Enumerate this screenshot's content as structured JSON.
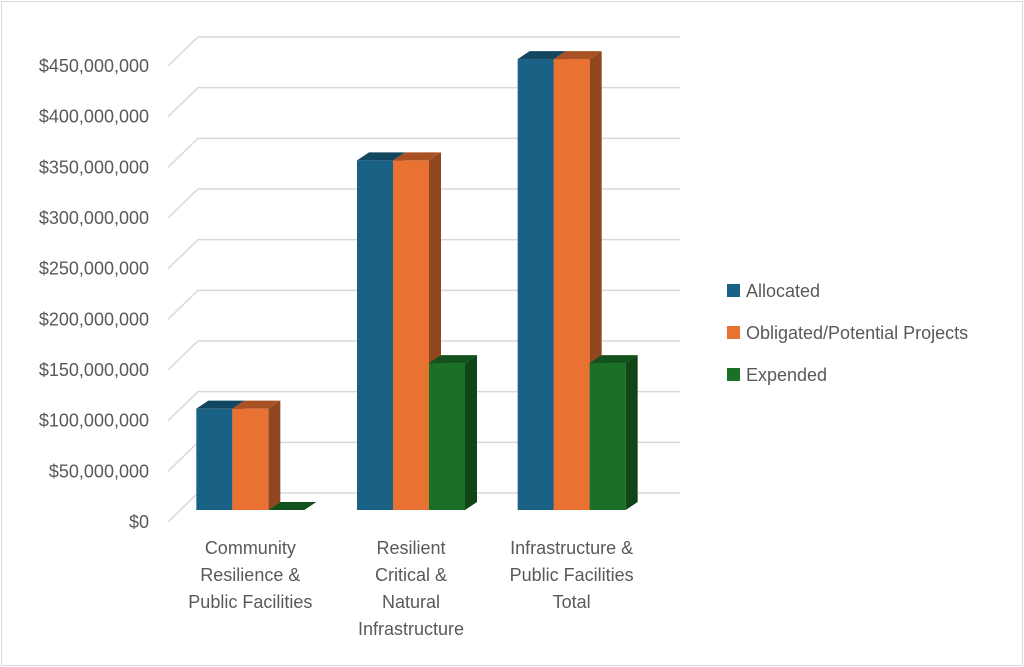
{
  "chart_data": {
    "type": "bar",
    "title": "",
    "xlabel": "",
    "ylabel": "",
    "categories": [
      [
        "Community",
        "Resilience &",
        "Public Facilities"
      ],
      [
        "Resilient",
        "Critical &",
        "Natural",
        "Infrastructure"
      ],
      [
        "Infrastructure &",
        "Public Facilities",
        "Total"
      ]
    ],
    "series": [
      {
        "name": "Allocated",
        "color": "#1a6285",
        "values": [
          100000000,
          345000000,
          445000000
        ]
      },
      {
        "name": "Obligated/Potential Projects",
        "color": "#e97132",
        "values": [
          100000000,
          345000000,
          445000000
        ]
      },
      {
        "name": "Expended",
        "color": "#1a7027",
        "values": [
          0,
          145000000,
          145000000
        ]
      }
    ],
    "ylim": [
      0,
      450000000
    ],
    "yticks": [
      "$0",
      "$50,000,000",
      "$100,000,000",
      "$150,000,000",
      "$200,000,000",
      "$250,000,000",
      "$300,000,000",
      "$350,000,000",
      "$400,000,000",
      "$450,000,000"
    ],
    "grid": true,
    "legend_position": "right",
    "style": "3d-clustered-column"
  }
}
